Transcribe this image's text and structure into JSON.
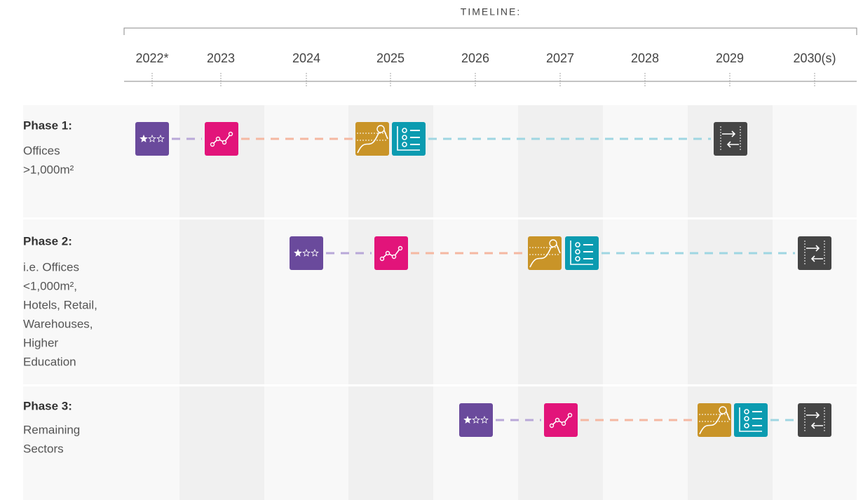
{
  "header": {
    "title": "TIMELINE:"
  },
  "years": [
    "2022*",
    "2023",
    "2024",
    "2025",
    "2026",
    "2027",
    "2028",
    "2029",
    "2030(s)"
  ],
  "phases": [
    {
      "title": "Phase 1:",
      "description": [
        "Offices",
        ">1,000m²"
      ]
    },
    {
      "title": "Phase 2:",
      "description": [
        "i.e. Offices",
        "<1,000m²,",
        "Hotels, Retail,",
        "Warehouses,",
        "Higher",
        "Education"
      ]
    },
    {
      "title": "Phase 3:",
      "description": [
        "Remaining",
        "Sectors"
      ]
    }
  ]
}
